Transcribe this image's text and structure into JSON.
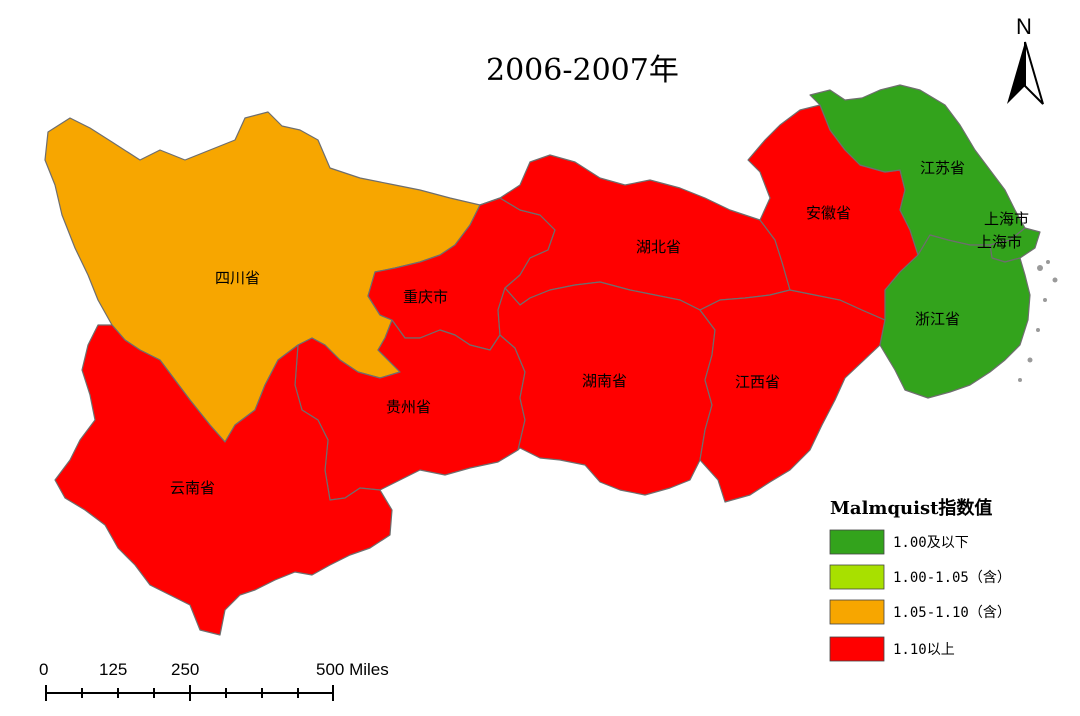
{
  "title": "2006-2007年",
  "north_arrow": {
    "label": "N"
  },
  "legend": {
    "title": "Malmquist指数值",
    "items": [
      {
        "label": "1.00及以下",
        "color": "#33a31c"
      },
      {
        "label": "1.00-1.05（含）",
        "color": "#a8e000"
      },
      {
        "label": "1.05-1.10（含）",
        "color": "#f7a600"
      },
      {
        "label": "1.10以上",
        "color": "#ff0000"
      }
    ]
  },
  "scale_bar": {
    "labels": [
      "0",
      "125",
      "250",
      "500 Miles"
    ]
  },
  "regions": [
    {
      "name": "四川省",
      "class": "1.05-1.10（含）"
    },
    {
      "name": "重庆市",
      "class": "1.10以上"
    },
    {
      "name": "云南省",
      "class": "1.10以上"
    },
    {
      "name": "贵州省",
      "class": "1.10以上"
    },
    {
      "name": "湖北省",
      "class": "1.10以上"
    },
    {
      "name": "湖南省",
      "class": "1.10以上"
    },
    {
      "name": "江西省",
      "class": "1.10以上"
    },
    {
      "name": "安徽省",
      "class": "1.10以上"
    },
    {
      "name": "江苏省",
      "class": "1.00及以下"
    },
    {
      "name": "浙江省",
      "class": "1.00及以下"
    },
    {
      "name": "上海市",
      "class": "1.00及以下"
    }
  ],
  "extra_labels": [
    "上海市"
  ]
}
